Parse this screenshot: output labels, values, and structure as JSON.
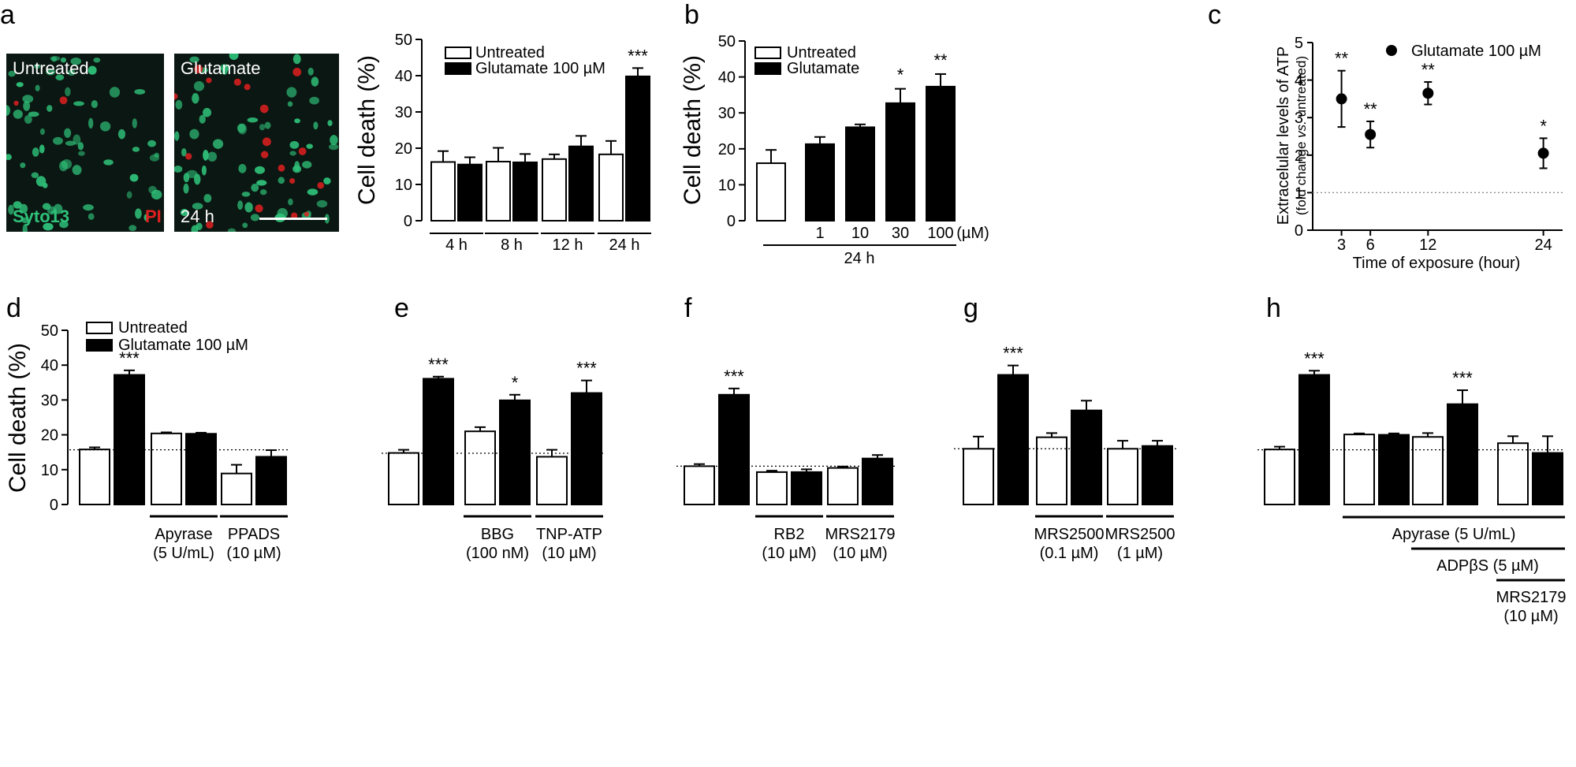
{
  "colors": {
    "untreated_fill": "#ffffff",
    "glutamate_fill": "#000000",
    "syto_green": "#2fc27a",
    "pi_red": "#e02020",
    "micro_bg": "#0b1712"
  },
  "micrographs": {
    "left_label": "Untreated",
    "right_label": "Glutamate",
    "stain_green": "Syto13",
    "stain_red": "PI",
    "time_label": "24 h"
  },
  "chart_data": [
    {
      "panel": "a",
      "type": "bar",
      "ylabel": "Cell death (%)",
      "ylim": [
        0,
        50
      ],
      "yticks": [
        0,
        10,
        20,
        30,
        40,
        50
      ],
      "legend": [
        "Untreated",
        "Glutamate 100 µM"
      ],
      "categories": [
        "4 h",
        "8 h",
        "12 h",
        "24 h"
      ],
      "series": [
        {
          "name": "Untreated",
          "values": [
            16.2,
            16.3,
            17.0,
            18.3
          ],
          "errors": [
            3.0,
            3.8,
            1.3,
            3.7
          ]
        },
        {
          "name": "Glutamate 100 µM",
          "values": [
            15.5,
            16.1,
            20.5,
            39.8
          ],
          "errors": [
            2.0,
            2.3,
            2.9,
            2.3
          ]
        }
      ],
      "annotations": [
        {
          "label": "***",
          "category": 3,
          "series": 1
        }
      ]
    },
    {
      "panel": "b",
      "type": "bar",
      "ylabel": "Cell death (%)",
      "ylim": [
        0,
        50
      ],
      "yticks": [
        0,
        10,
        20,
        30,
        40,
        50
      ],
      "legend": [
        "Untreated",
        "Glutamate"
      ],
      "categories": [
        "",
        "1",
        "10",
        "30",
        "100"
      ],
      "unit_label": "(µM)",
      "group_label": "24 h",
      "bars": [
        {
          "series": "Untreated",
          "value": 16.0,
          "error": 3.7
        },
        {
          "series": "Glutamate",
          "value": 21.3,
          "error": 2.0
        },
        {
          "series": "Glutamate",
          "value": 26.0,
          "error": 0.8
        },
        {
          "series": "Glutamate",
          "value": 32.7,
          "error": 4.0
        },
        {
          "series": "Glutamate",
          "value": 37.3,
          "error": 3.5
        }
      ],
      "annotations": [
        {
          "label": "*",
          "bar": 3
        },
        {
          "label": "**",
          "bar": 4
        }
      ]
    },
    {
      "panel": "c",
      "type": "scatter",
      "ylabel_line1": "Extracelular levels of ATP",
      "ylabel_line2_parts": [
        "(fold change ",
        "vs.",
        " untreated)"
      ],
      "xlabel": "Time of exposure (hour)",
      "legend": [
        "Glutamate 100 µM"
      ],
      "x": [
        3,
        6,
        12,
        24
      ],
      "y": [
        3.5,
        2.55,
        3.65,
        2.05
      ],
      "errors": [
        0.75,
        0.35,
        0.3,
        0.4
      ],
      "xticks": [
        3,
        6,
        12,
        24
      ],
      "yticks": [
        0,
        1,
        2,
        3,
        4,
        5
      ],
      "ylim": [
        0,
        5
      ],
      "xlim": [
        0,
        26
      ],
      "reference_line": 1,
      "annotations": [
        "**",
        "**",
        "**",
        "*"
      ]
    },
    {
      "panel": "d",
      "type": "bar",
      "ylabel": "Cell death (%)",
      "ylim": [
        0,
        50
      ],
      "yticks": [
        0,
        10,
        20,
        30,
        40,
        50
      ],
      "legend": [
        "Untreated",
        "Glutamate 100 µM"
      ],
      "baseline_ref": 15.7,
      "groups": [
        {
          "label1": "",
          "label2": "",
          "values": [
            15.8,
            37.2
          ],
          "errors": [
            0.6,
            1.3
          ],
          "stars": "***"
        },
        {
          "label1": "Apyrase",
          "label2": "(5 U/mL)",
          "values": [
            20.4,
            20.3
          ],
          "errors": [
            0.3,
            0.3
          ],
          "stars": ""
        },
        {
          "label1": "PPADS",
          "label2": "(10 µM)",
          "values": [
            8.9,
            13.7
          ],
          "errors": [
            2.5,
            1.9
          ],
          "stars": ""
        }
      ]
    },
    {
      "panel": "e",
      "type": "bar",
      "ylim": [
        0,
        50
      ],
      "baseline_ref": 14.7,
      "groups": [
        {
          "label1": "",
          "label2": "",
          "values": [
            14.8,
            36.1
          ],
          "errors": [
            0.9,
            0.6
          ],
          "stars": "***"
        },
        {
          "label1": "BBG",
          "label2": "(100 nM)",
          "values": [
            21.0,
            29.9
          ],
          "errors": [
            1.2,
            1.6
          ],
          "stars": "*"
        },
        {
          "label1": "TNP-ATP",
          "label2": "(10 µM)",
          "values": [
            13.7,
            32.0
          ],
          "errors": [
            2.0,
            3.6
          ],
          "stars": "***"
        }
      ]
    },
    {
      "panel": "f",
      "type": "bar",
      "ylim": [
        0,
        50
      ],
      "baseline_ref": 11.0,
      "groups": [
        {
          "label1": "",
          "label2": "",
          "values": [
            11.0,
            31.5
          ],
          "errors": [
            0.6,
            1.8
          ],
          "stars": "***"
        },
        {
          "label1": "RB2",
          "label2": "(10 µM)",
          "values": [
            9.3,
            9.3
          ],
          "errors": [
            0.4,
            0.8
          ],
          "stars": ""
        },
        {
          "label1": "MRS2179",
          "label2": "(10 µM)",
          "values": [
            10.5,
            13.2
          ],
          "errors": [
            0.4,
            1.0
          ],
          "stars": ""
        }
      ]
    },
    {
      "panel": "g",
      "type": "bar",
      "ylim": [
        0,
        50
      ],
      "baseline_ref": 16.0,
      "groups": [
        {
          "label1": "",
          "label2": "",
          "values": [
            16.0,
            37.2
          ],
          "errors": [
            3.5,
            2.7
          ],
          "stars": "***"
        },
        {
          "label1": "MRS2500",
          "label2": "(0.1 µM)",
          "values": [
            19.3,
            27.0
          ],
          "errors": [
            1.2,
            2.8
          ],
          "stars": ""
        },
        {
          "label1": "MRS2500",
          "label2": "(1 µM)",
          "values": [
            16.0,
            16.8
          ],
          "errors": [
            2.3,
            1.5
          ],
          "stars": ""
        }
      ]
    },
    {
      "panel": "h",
      "type": "bar",
      "ylim": [
        0,
        50
      ],
      "baseline_ref": 15.7,
      "groups": [
        {
          "values": [
            15.8,
            37.2
          ],
          "errors": [
            0.8,
            1.2
          ],
          "stars": "***"
        },
        {
          "values": [
            20.1,
            20.0
          ],
          "errors": [
            0.3,
            0.4
          ],
          "stars": ""
        },
        {
          "values": [
            19.4,
            28.8
          ],
          "errors": [
            1.1,
            4.0
          ],
          "stars": "***"
        },
        {
          "values": [
            17.6,
            14.8
          ],
          "errors": [
            2.0,
            4.8
          ],
          "stars": ""
        }
      ],
      "bracket_labels": {
        "apyrase": "Apyrase (5 U/mL)",
        "adp_prefix": "ADP",
        "adp_beta": "β",
        "adp_suffix": "S (5 µM)",
        "mrs_line1": "MRS2179",
        "mrs_line2": "(10 µM)"
      }
    }
  ],
  "panel_labels": [
    "a",
    "b",
    "c",
    "d",
    "e",
    "f",
    "g",
    "h"
  ]
}
